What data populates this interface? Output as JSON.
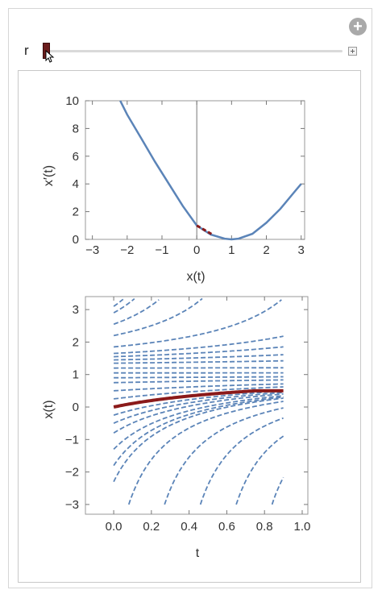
{
  "controls": {
    "slider_label": "r",
    "plus_icon": "plus-circle-icon",
    "expand_icon": "plus-square-icon"
  },
  "colors": {
    "curve": "#5b84b8",
    "highlight": "#8b1a1a",
    "axis": "#555555"
  },
  "chart_data": [
    {
      "type": "line",
      "title": "",
      "xlabel": "x(t)",
      "ylabel": "x′(t)",
      "xlim": [
        -3.2,
        3.1
      ],
      "ylim": [
        0,
        10
      ],
      "x_ticks": [
        "−3",
        "−2",
        "−1",
        "0",
        "1",
        "2",
        "3"
      ],
      "y_ticks": [
        "0",
        "2",
        "4",
        "6",
        "8",
        "10"
      ],
      "series": [
        {
          "formula_note": "",
          "x": [
            -2.2,
            -2.0,
            -1.6,
            -1.2,
            -0.8,
            -0.4,
            0.0,
            0.4,
            0.8,
            1.0,
            1.2,
            1.6,
            2.0,
            2.4,
            2.8,
            3.0
          ],
          "y": [
            10.0,
            9.0,
            7.3,
            5.6,
            4.0,
            2.4,
            1.0,
            0.35,
            0.05,
            0.0,
            0.05,
            0.4,
            1.2,
            2.2,
            3.4,
            4.0
          ]
        }
      ],
      "highlight": {
        "x": [
          0.0,
          0.45
        ],
        "y": [
          1.0,
          0.35
        ]
      }
    },
    {
      "type": "line",
      "title": "",
      "xlabel": "t",
      "ylabel": "x(t)",
      "xlim": [
        -0.15,
        1.03
      ],
      "ylim": [
        -3.3,
        3.4
      ],
      "x_ticks": [
        "0.0",
        "0.2",
        "0.4",
        "0.6",
        "0.8",
        "1.0"
      ],
      "y_ticks": [
        "−3",
        "−2",
        "−1",
        "0",
        "1",
        "2",
        "3"
      ],
      "family_initial_values": [
        -2.3,
        -1.8,
        -1.3,
        -0.8,
        -0.5,
        -0.25,
        0.25,
        0.5,
        0.75,
        0.9,
        1.05,
        1.2,
        1.35,
        1.45,
        1.55,
        1.65,
        1.85,
        2.2,
        2.55
      ],
      "highlight": {
        "t": [
          0.0,
          0.9
        ],
        "x": [
          0.0,
          0.5
        ]
      }
    }
  ]
}
